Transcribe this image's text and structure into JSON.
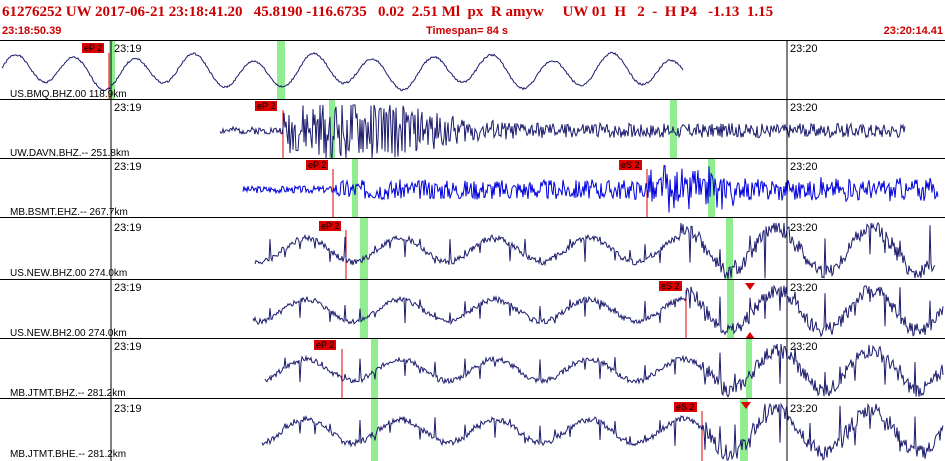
{
  "header": {
    "title_line": "61276252 UW 2017-06-21 23:18:41.20   45.8190 -116.6735   0.02  2.51 Ml  px  R amyw     UW 01  H   2  -  H P4   -1.13  1.15",
    "start_time": "23:18:50.39",
    "timespan": "Timespan=  84 s",
    "end_time": "23:20:14.41"
  },
  "colors": {
    "header_text": "#cc0000",
    "trace": "#1c1c6e",
    "trace_alt": "#0000dd",
    "pick": "#dd0000",
    "window": "#90ee90"
  },
  "panels": [
    {
      "channel": "US.BMQ.BHZ.00 118.9km",
      "t1": "23:19",
      "t2": "23:20",
      "picks": [
        {
          "label": "eP 2"
        }
      ]
    },
    {
      "channel": "UW.DAVN.BHZ.-- 251.8km",
      "t1": "23:19",
      "t2": "23:20",
      "picks": [
        {
          "label": "eP 2"
        }
      ]
    },
    {
      "channel": "MB.BSMT.EHZ.-- 267.7km",
      "t1": "23:19",
      "t2": "23:20",
      "picks": [
        {
          "label": "eP 2"
        },
        {
          "label": "eS 2"
        }
      ]
    },
    {
      "channel": "US.NEW.BHZ.00 274.0km",
      "t1": "23:19",
      "t2": "23:20",
      "picks": [
        {
          "label": "eP 2"
        }
      ]
    },
    {
      "channel": "US.NEW.BH2.00 274.0km",
      "t1": "23:19",
      "t2": "23:20",
      "picks": [
        {
          "label": "eS 2"
        }
      ]
    },
    {
      "channel": "MB.JTMT.BHZ.-- 281.2km",
      "t1": "23:19",
      "t2": "23:20",
      "picks": [
        {
          "label": "eP 2"
        }
      ]
    },
    {
      "channel": "MB.JTMT.BHE.-- 281.2km",
      "t1": "23:19",
      "t2": "23:20",
      "picks": [
        {
          "label": "eS 2"
        }
      ]
    }
  ]
}
